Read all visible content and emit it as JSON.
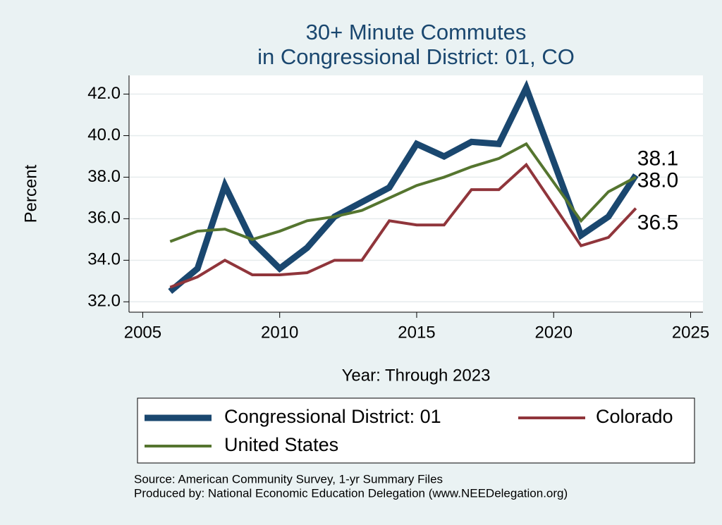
{
  "chart_data": {
    "type": "line",
    "title": [
      "30+ Minute Commutes",
      "in Congressional District:  01, CO"
    ],
    "x_label": "Year: Through 2023",
    "y_label": "Percent",
    "x": [
      2006,
      2007,
      2008,
      2009,
      2010,
      2011,
      2012,
      2013,
      2014,
      2015,
      2016,
      2017,
      2018,
      2019,
      2021,
      2022,
      2023
    ],
    "series": [
      {
        "name": "Congressional District:  01",
        "color": "#1a476f",
        "width": 9,
        "values": [
          32.5,
          33.6,
          37.6,
          34.9,
          33.6,
          34.6,
          36.1,
          36.8,
          37.5,
          39.6,
          39.0,
          39.7,
          39.6,
          42.3,
          35.2,
          36.1,
          38.1
        ],
        "value_labels": [
          null,
          null,
          null,
          null,
          null,
          null,
          null,
          null,
          null,
          null,
          null,
          null,
          null,
          null,
          null,
          null,
          "38.1"
        ]
      },
      {
        "name": "Colorado",
        "color": "#90353b",
        "width": 4,
        "values": [
          32.7,
          33.2,
          34.0,
          33.3,
          33.3,
          33.4,
          34.0,
          34.0,
          35.9,
          35.7,
          35.7,
          37.4,
          37.4,
          38.6,
          34.7,
          35.1,
          36.5
        ],
        "value_labels": [
          null,
          null,
          null,
          null,
          null,
          null,
          null,
          null,
          null,
          null,
          null,
          null,
          null,
          null,
          null,
          null,
          "36.5"
        ]
      },
      {
        "name": "United States",
        "color": "#55752f",
        "width": 4,
        "values": [
          34.9,
          35.4,
          35.5,
          35.0,
          35.4,
          35.9,
          36.1,
          36.4,
          37.0,
          37.6,
          38.0,
          38.5,
          38.9,
          39.6,
          35.9,
          37.3,
          38.0
        ],
        "value_labels": [
          null,
          null,
          null,
          null,
          null,
          null,
          null,
          null,
          null,
          null,
          null,
          null,
          null,
          null,
          null,
          null,
          "38.0"
        ]
      }
    ],
    "xlim": [
      2004.5,
      2025.45
    ],
    "xticks": [
      2005,
      2010,
      2015,
      2020,
      2025
    ],
    "ylim": [
      31.5,
      42.9
    ],
    "yticks": [
      {
        "value": 32,
        "label": "32.0"
      },
      {
        "value": 34,
        "label": "34.0"
      },
      {
        "value": 36,
        "label": "36.0"
      },
      {
        "value": 38,
        "label": "38.0"
      },
      {
        "value": 40,
        "label": "40.0"
      },
      {
        "value": 42,
        "label": "42.0"
      }
    ],
    "grid": true,
    "notes": [
      "Source: American Community Survey, 1-yr Summary Files",
      "Produced by: National Economic Education Delegation (www.NEEDelegation.org)"
    ]
  }
}
